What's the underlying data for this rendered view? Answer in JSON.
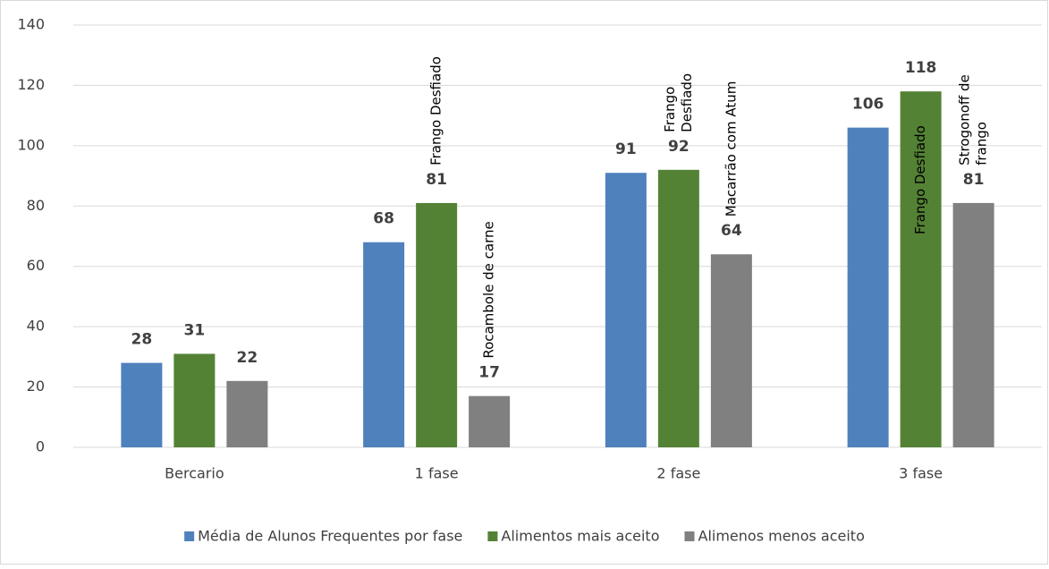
{
  "chart_data": {
    "type": "bar",
    "categories": [
      "Bercario",
      "1 fase",
      "2 fase",
      "3 fase"
    ],
    "series": [
      {
        "name": "Média de Alunos Frequentes por fase",
        "color": "#4f81bd",
        "values": [
          28,
          68,
          91,
          106
        ],
        "notes": [
          null,
          null,
          null,
          null
        ]
      },
      {
        "name": "Alimentos mais aceito",
        "color": "#548235",
        "values": [
          31,
          81,
          92,
          118
        ],
        "notes": [
          null,
          [
            "Frango Desfiado"
          ],
          [
            "Frango",
            "Desfiado"
          ],
          [
            "Frango Desfiado"
          ]
        ]
      },
      {
        "name": "Alimenos menos aceito",
        "color": "#808080",
        "values": [
          22,
          17,
          64,
          81
        ],
        "notes": [
          null,
          [
            "Rocambole de carne"
          ],
          [
            "Macarrão com Atum"
          ],
          [
            "Strogonoff de",
            "frango"
          ]
        ]
      }
    ],
    "ylim": [
      0,
      140
    ],
    "yticks": [
      0,
      20,
      40,
      60,
      80,
      100,
      120,
      140
    ],
    "grid": true,
    "legend": "bottom"
  }
}
